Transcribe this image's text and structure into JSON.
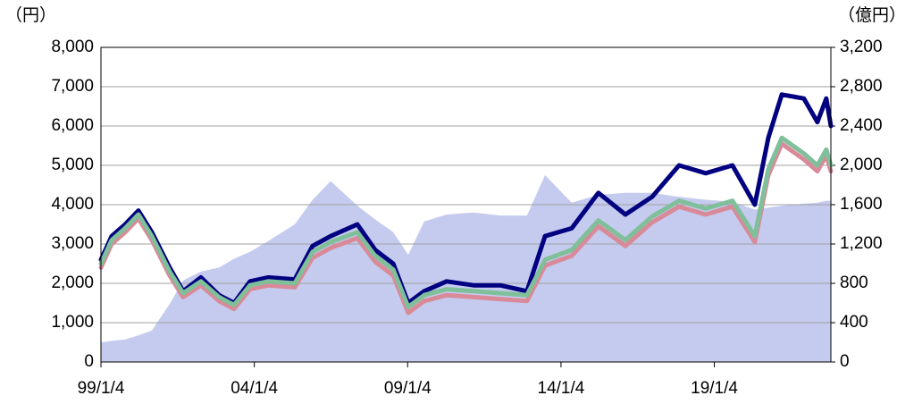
{
  "chart_data": {
    "type": "line",
    "y_label": "（円）",
    "y2_label": "（億円）",
    "x": [
      1999.0,
      1999.35,
      1999.79,
      2000.22,
      2000.66,
      2001.24,
      2001.68,
      2002.26,
      2002.85,
      2003.34,
      2003.86,
      2004.45,
      2005.32,
      2005.9,
      2006.49,
      2007.36,
      2007.94,
      2008.53,
      2009.02,
      2009.54,
      2010.27,
      2011.15,
      2012.02,
      2012.89,
      2013.48,
      2014.35,
      2015.22,
      2016.1,
      2016.97,
      2017.85,
      2018.72,
      2019.59,
      2020.32,
      2020.76,
      2021.2,
      2021.92,
      2022.36,
      2022.65,
      2022.8
    ],
    "series": [
      {
        "color": "#c5cbef",
        "axis": "y2",
        "style": "area",
        "values": [
          200,
          215,
          230,
          270,
          320,
          590,
          830,
          920,
          960,
          1050,
          1120,
          1230,
          1400,
          1650,
          1840,
          1590,
          1450,
          1320,
          1090,
          1430,
          1500,
          1520,
          1490,
          1490,
          1900,
          1620,
          1700,
          1720,
          1720,
          1680,
          1650,
          1630,
          1550,
          1570,
          1590,
          1610,
          1620,
          1640,
          1640
        ]
      },
      {
        "color": "#000080",
        "values": [
          2600,
          3200,
          3500,
          3850,
          3300,
          2400,
          1800,
          2150,
          1700,
          1500,
          2050,
          2150,
          2100,
          2950,
          3200,
          3500,
          2850,
          2500,
          1500,
          1800,
          2050,
          1950,
          1950,
          1800,
          3200,
          3400,
          4300,
          3750,
          4200,
          5000,
          4800,
          5000,
          4000,
          5700,
          6800,
          6700,
          6100,
          6700,
          6000
        ]
      },
      {
        "color": "#d98a98",
        "values": [
          2400,
          3000,
          3300,
          3650,
          3100,
          2200,
          1650,
          1950,
          1550,
          1350,
          1850,
          1950,
          1900,
          2650,
          2900,
          3150,
          2550,
          2200,
          1250,
          1550,
          1700,
          1650,
          1600,
          1550,
          2450,
          2700,
          3450,
          2950,
          3550,
          3950,
          3750,
          3950,
          3050,
          4750,
          5550,
          5150,
          4850,
          5250,
          4850
        ]
      },
      {
        "color": "#7fbf9a",
        "values": [
          2500,
          3100,
          3400,
          3750,
          3200,
          2300,
          1750,
          2050,
          1650,
          1450,
          1950,
          2050,
          2000,
          2800,
          3050,
          3300,
          2700,
          2350,
          1400,
          1700,
          1850,
          1800,
          1750,
          1700,
          2600,
          2850,
          3600,
          3100,
          3700,
          4100,
          3900,
          4100,
          3200,
          4900,
          5700,
          5300,
          5000,
          5400,
          5000
        ]
      }
    ],
    "xlim": [
      1999.0,
      2022.8
    ],
    "xticks": [
      {
        "value": 1999.0,
        "label": "99/1/4"
      },
      {
        "value": 2004.0,
        "label": "04/1/4"
      },
      {
        "value": 2009.0,
        "label": "09/1/4"
      },
      {
        "value": 2014.0,
        "label": "14/1/4"
      },
      {
        "value": 2019.0,
        "label": "19/1/4"
      }
    ],
    "ylim": [
      0,
      8000
    ],
    "yticks": [
      0,
      {
        "value": 1000,
        "label": "1,000"
      },
      {
        "value": 2000,
        "label": "2,000"
      },
      {
        "value": 3000,
        "label": "3,000"
      },
      {
        "value": 4000,
        "label": "4,000"
      },
      {
        "value": 5000,
        "label": "5,000"
      },
      {
        "value": 6000,
        "label": "6,000"
      },
      {
        "value": 7000,
        "label": "7,000"
      },
      {
        "value": 8000,
        "label": "8,000"
      }
    ],
    "y2lim": [
      0,
      3200
    ],
    "y2ticks": [
      0,
      400,
      800,
      {
        "value": 1200,
        "label": "1,200"
      },
      {
        "value": 1600,
        "label": "1,600"
      },
      {
        "value": 2000,
        "label": "2,000"
      },
      {
        "value": 2400,
        "label": "2,400"
      },
      {
        "value": 2800,
        "label": "2,800"
      },
      {
        "value": 3200,
        "label": "3,200"
      }
    ],
    "grid": true
  }
}
